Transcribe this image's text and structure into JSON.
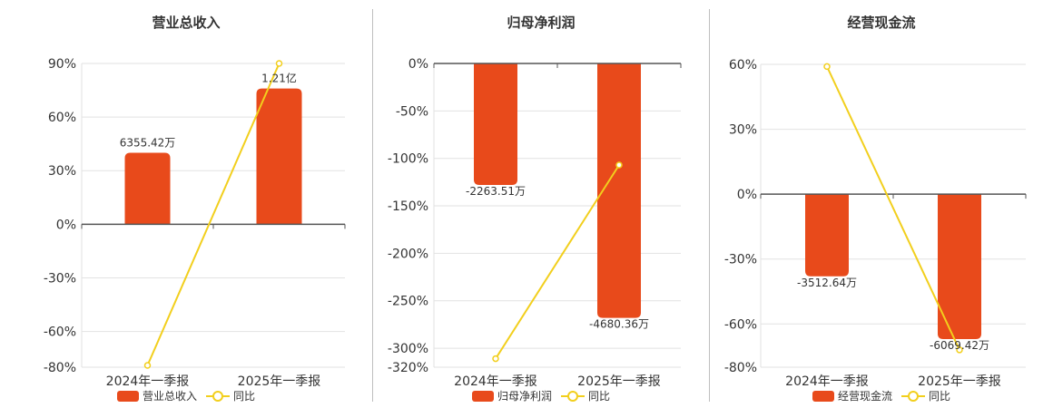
{
  "colors": {
    "bar": "#e84a1b",
    "line": "#f2cf1d",
    "grid": "#e2e2e2",
    "axis": "#555555"
  },
  "chart_data": [
    {
      "type": "bar",
      "title": "营业总收入",
      "categories": [
        "2024年一季报",
        "2025年一季报"
      ],
      "ylim": [
        -80,
        90
      ],
      "yticks": [
        "90%",
        "60%",
        "30%",
        "0%",
        "-30%",
        "-60%",
        "-80%"
      ],
      "ytick_values": [
        90,
        60,
        30,
        0,
        -30,
        -60,
        -80
      ],
      "series": [
        {
          "name": "营业总收入",
          "type": "bar",
          "values": [
            40,
            76
          ],
          "labels": [
            "6355.42万",
            "1.21亿"
          ]
        },
        {
          "name": "同比",
          "type": "line",
          "values": [
            -79,
            90
          ]
        }
      ],
      "legend": "bottom-center"
    },
    {
      "type": "bar",
      "title": "归母净利润",
      "categories": [
        "2024年一季报",
        "2025年一季报"
      ],
      "ylim": [
        -320,
        0
      ],
      "yticks": [
        "0%",
        "-50%",
        "-100%",
        "-150%",
        "-200%",
        "-250%",
        "-300%",
        "-320%"
      ],
      "ytick_values": [
        0,
        -50,
        -100,
        -150,
        -200,
        -250,
        -300,
        -320
      ],
      "series": [
        {
          "name": "归母净利润",
          "type": "bar",
          "values": [
            -128,
            -268
          ],
          "labels": [
            "-2263.51万",
            "-4680.36万"
          ]
        },
        {
          "name": "同比",
          "type": "line",
          "values": [
            -311,
            -107
          ]
        }
      ],
      "legend": "bottom-center"
    },
    {
      "type": "bar",
      "title": "经营现金流",
      "categories": [
        "2024年一季报",
        "2025年一季报"
      ],
      "ylim": [
        -80,
        60
      ],
      "yticks": [
        "60%",
        "30%",
        "0%",
        "-30%",
        "-60%",
        "-80%"
      ],
      "ytick_values": [
        60,
        30,
        0,
        -30,
        -60,
        -80
      ],
      "series": [
        {
          "name": "经营现金流",
          "type": "bar",
          "values": [
            -38,
            -67
          ],
          "labels": [
            "-3512.64万",
            "-6069.42万"
          ]
        },
        {
          "name": "同比",
          "type": "line",
          "values": [
            59,
            -72
          ]
        }
      ],
      "legend": "bottom-center"
    }
  ]
}
